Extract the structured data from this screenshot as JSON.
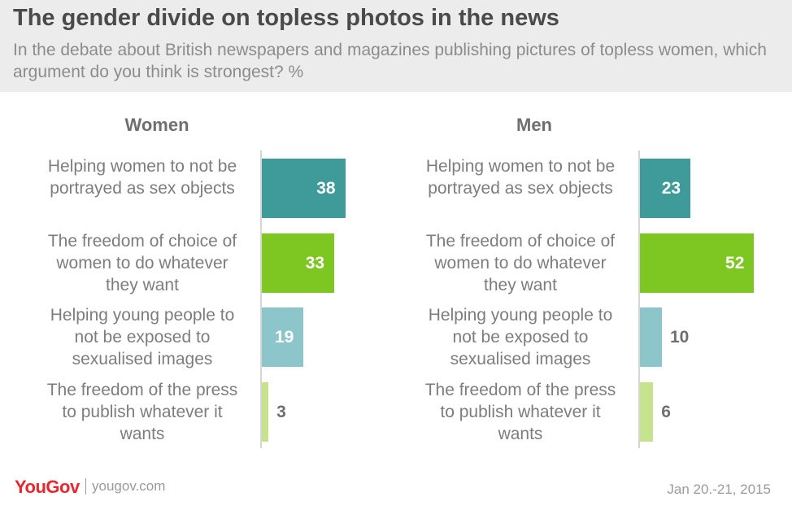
{
  "title": "The gender divide on topless photos in the news",
  "subtitle": "In the debate about British newspapers and magazines publishing pictures of topless women, which argument do you think is strongest? %",
  "footer": {
    "logo": "YouGov",
    "site": "yougov.com",
    "date": "Jan 20.-21, 2015"
  },
  "colors": [
    "#3f9a9a",
    "#7ec622",
    "#8cc6cb",
    "#c4e38c"
  ],
  "chart_data": [
    {
      "type": "bar",
      "title": "Women",
      "categories": [
        "Helping women to not be portrayed as sex objects",
        "The freedom of choice of women to do whatever they want",
        "Helping young people to not be exposed to sexualised images",
        "The freedom of the press to publish whatever it wants"
      ],
      "values": [
        38,
        33,
        19,
        3
      ]
    },
    {
      "type": "bar",
      "title": "Men",
      "categories": [
        "Helping women to not be portrayed as sex objects",
        "The freedom of choice of women to do whatever they want",
        "Helping young people to not be exposed to sexualised images",
        "The freedom of the press to publish whatever it wants"
      ],
      "values": [
        23,
        52,
        10,
        6
      ]
    }
  ]
}
